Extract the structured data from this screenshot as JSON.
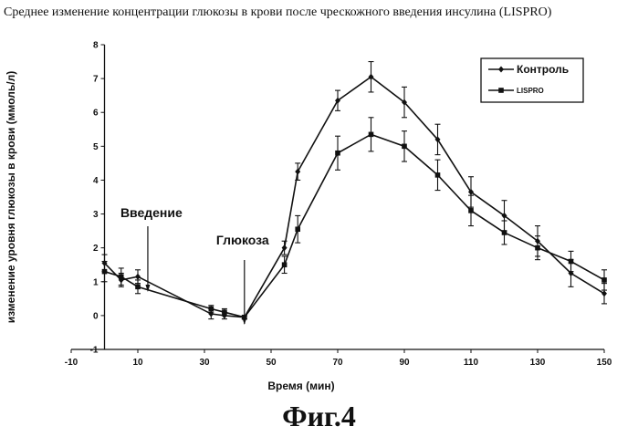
{
  "page": {
    "title": "Среднее изменение концентрации глюкозы в крови после чрескожного введения инсулина (LISPRO)",
    "caption": "Фиг.4"
  },
  "chart_data": {
    "type": "line",
    "title": "Среднее изменение концентрации глюкозы в крови после чрескожного введения инсулина (LISPRO)",
    "xlabel": "Время (мин)",
    "ylabel": "изменение уровня глюкозы в крови (ммоль/л)",
    "xlim": [
      -10,
      150
    ],
    "ylim": [
      -1,
      8
    ],
    "x_ticks": [
      -10,
      10,
      30,
      50,
      70,
      90,
      110,
      130,
      150
    ],
    "y_ticks": [
      -1,
      0,
      1,
      2,
      3,
      4,
      5,
      6,
      7,
      8
    ],
    "grid": false,
    "legend_position": "top-right",
    "series": [
      {
        "name": "Контроль",
        "marker": "diamond",
        "x": [
          0,
          5,
          10,
          32,
          36,
          42,
          54,
          58,
          70,
          80,
          90,
          100,
          110,
          120,
          130,
          140,
          150
        ],
        "y": [
          1.55,
          1.05,
          1.15,
          0.05,
          0.0,
          -0.05,
          2.0,
          4.25,
          6.35,
          7.05,
          6.3,
          5.2,
          3.65,
          2.95,
          2.2,
          1.25,
          0.65
        ],
        "err": [
          0.25,
          0.2,
          0.2,
          0.15,
          0.1,
          0.05,
          0.2,
          0.25,
          0.3,
          0.45,
          0.45,
          0.45,
          0.45,
          0.45,
          0.45,
          0.4,
          0.3
        ]
      },
      {
        "name": "LISPRO",
        "marker": "square",
        "x": [
          0,
          5,
          10,
          32,
          36,
          42,
          54,
          58,
          70,
          80,
          90,
          100,
          110,
          120,
          130,
          140,
          150
        ],
        "y": [
          1.3,
          1.15,
          0.85,
          0.2,
          0.1,
          -0.05,
          1.5,
          2.55,
          4.8,
          5.35,
          5.0,
          4.15,
          3.1,
          2.45,
          2.0,
          1.6,
          1.05
        ],
        "err": [
          0.3,
          0.25,
          0.2,
          0.1,
          0.1,
          0.05,
          0.25,
          0.4,
          0.5,
          0.5,
          0.45,
          0.45,
          0.45,
          0.35,
          0.35,
          0.3,
          0.3
        ]
      }
    ],
    "annotations": [
      {
        "text": "Введение",
        "x": 13
      },
      {
        "text": "Глюкоза",
        "x": 42
      }
    ]
  }
}
